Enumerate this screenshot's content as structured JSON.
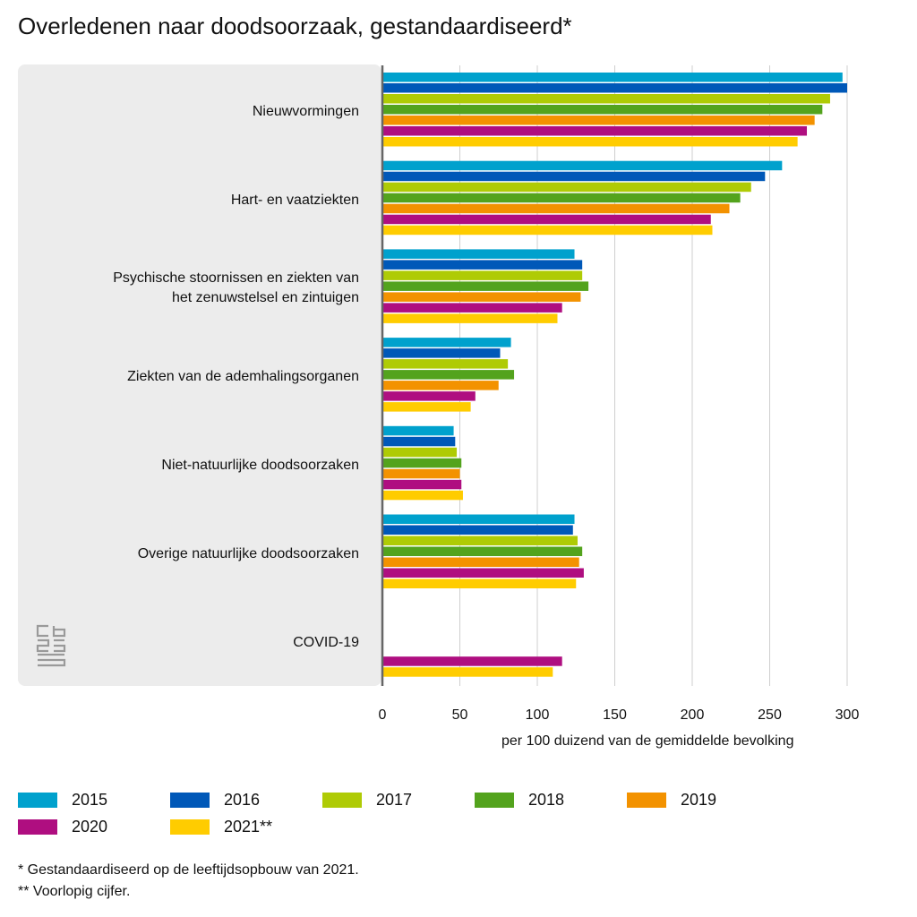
{
  "title": "Overledenen naar doodsoorzaak, gestandaardiseerd*",
  "chart_data": {
    "type": "bar",
    "orientation": "horizontal",
    "title": "Overledenen naar doodsoorzaak, gestandaardiseerd*",
    "xlabel": "per 100 duizend van de gemiddelde bevolking",
    "xlim": [
      0,
      300
    ],
    "xticks": [
      0,
      50,
      100,
      150,
      200,
      250,
      300
    ],
    "grid": true,
    "legend_position": "bottom",
    "categories": [
      "Nieuwvormingen",
      "Hart- en vaatziekten",
      "Psychische stoornissen en ziekten van het zenuwstelsel en zintuigen",
      "Ziekten van de ademhalingsorganen",
      "Niet-natuurlijke doodsoorzaken",
      "Overige natuurlijke doodsoorzaken",
      "COVID-19"
    ],
    "category_lines": [
      [
        "Nieuwvormingen"
      ],
      [
        "Hart- en vaatziekten"
      ],
      [
        "Psychische stoornissen en ziekten van",
        "het zenuwstelsel en zintuigen"
      ],
      [
        "Ziekten van de ademhalingsorganen"
      ],
      [
        "Niet-natuurlijke doodsoorzaken"
      ],
      [
        "Overige natuurlijke doodsoorzaken"
      ],
      [
        "COVID-19"
      ]
    ],
    "series": [
      {
        "name": "2015",
        "color": "#00a1cd",
        "values": [
          297,
          258,
          124,
          83,
          46,
          124,
          null
        ]
      },
      {
        "name": "2016",
        "color": "#0058b8",
        "values": [
          300,
          247,
          129,
          76,
          47,
          123,
          null
        ]
      },
      {
        "name": "2017",
        "color": "#afcb05",
        "values": [
          289,
          238,
          129,
          81,
          48,
          126,
          null
        ]
      },
      {
        "name": "2018",
        "color": "#53a31d",
        "values": [
          284,
          231,
          133,
          85,
          51,
          129,
          null
        ]
      },
      {
        "name": "2019",
        "color": "#f39200",
        "values": [
          279,
          224,
          128,
          75,
          50,
          127,
          null
        ]
      },
      {
        "name": "2020",
        "color": "#af0e80",
        "values": [
          274,
          212,
          116,
          60,
          51,
          130,
          116
        ]
      },
      {
        "name": "2021**",
        "color": "#ffcc00",
        "values": [
          268,
          213,
          113,
          57,
          52,
          125,
          110
        ]
      }
    ]
  },
  "footnotes": [
    "* Gestandaardiseerd op de leeftijdsopbouw van 2021.",
    "** Voorlopig cijfer."
  ]
}
